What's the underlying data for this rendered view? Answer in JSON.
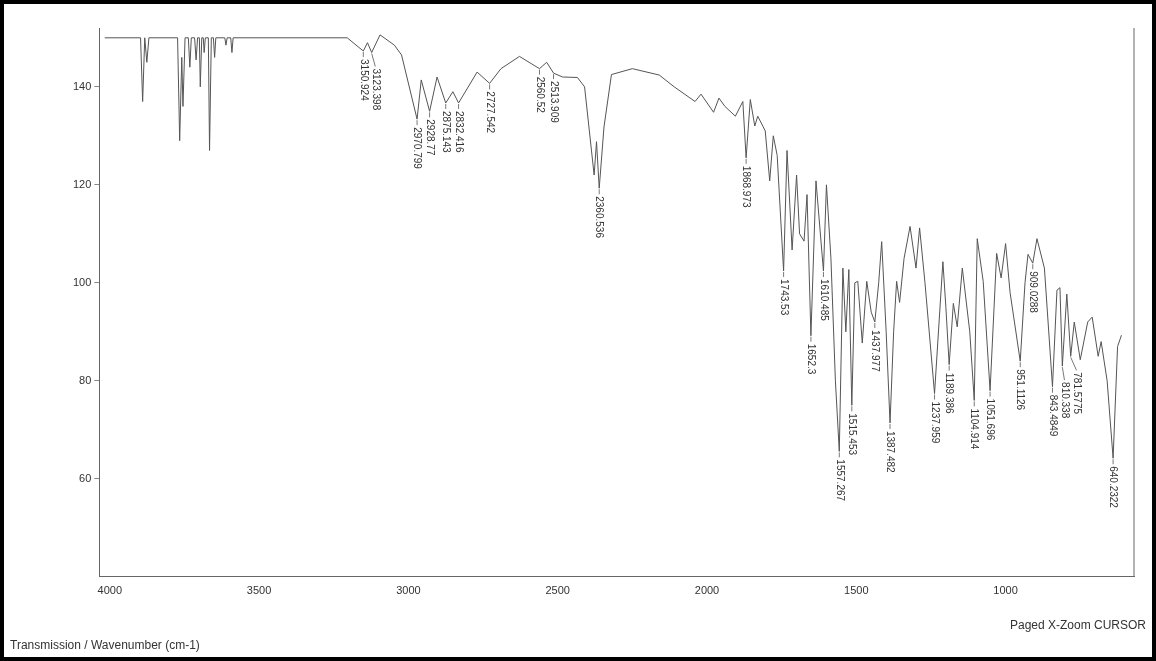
{
  "chart_data": {
    "type": "line",
    "xlabel": "Transmission / Wavenumber (cm-1)",
    "x": [
      4017,
      3897,
      3890,
      3883,
      3876,
      3869,
      3773,
      3766,
      3759,
      3755,
      3748,
      3737,
      3732,
      3727,
      3716,
      3711,
      3706,
      3700,
      3697,
      3692,
      3687,
      3684,
      3680,
      3670,
      3666,
      3660,
      3653,
      3649,
      3645,
      3615,
      3611,
      3607,
      3595,
      3591,
      3587,
      3205,
      3151,
      3137,
      3123,
      3095,
      3047,
      3023,
      2971,
      2957,
      2929,
      2904,
      2875,
      2851,
      2832,
      2770,
      2728,
      2690,
      2628,
      2561,
      2537,
      2514,
      2484,
      2434,
      2410,
      2378,
      2370,
      2361,
      2345,
      2320,
      2250,
      2160,
      2110,
      2040,
      2020,
      1978,
      1960,
      1940,
      1905,
      1880,
      1869,
      1855,
      1840,
      1830,
      1805,
      1790,
      1778,
      1765,
      1743.5,
      1732,
      1715,
      1700,
      1690,
      1675,
      1665,
      1652,
      1635,
      1610,
      1600,
      1585,
      1570,
      1557,
      1545,
      1535,
      1525,
      1515,
      1505,
      1495,
      1480,
      1465,
      1450,
      1438,
      1425,
      1415,
      1400,
      1387,
      1375,
      1365,
      1355,
      1340,
      1320,
      1300,
      1288,
      1270,
      1238,
      1210,
      1200,
      1189,
      1175,
      1162,
      1145,
      1120,
      1105,
      1095,
      1075,
      1052,
      1030,
      1015,
      1000,
      985,
      951,
      935,
      925,
      909,
      895,
      870,
      843,
      828,
      818,
      810,
      795,
      782,
      770,
      750,
      725,
      710,
      690,
      680,
      660,
      640,
      625,
      612
    ],
    "series": [
      {
        "color": "#555555",
        "values": [
          150,
          150,
          137,
          150,
          145,
          150,
          150,
          129,
          146,
          136,
          150,
          150,
          144,
          150,
          150,
          145.5,
          150,
          150,
          140,
          150,
          150,
          147,
          150,
          150,
          127,
          150,
          150,
          146,
          150,
          150,
          148.5,
          150,
          150,
          147,
          150,
          150,
          147.3,
          149,
          147,
          150.6,
          148.5,
          146.5,
          133.4,
          141.4,
          135,
          142,
          136.7,
          139,
          136.7,
          143,
          140.7,
          143.7,
          146.2,
          143.7,
          145,
          142.8,
          142,
          141.9,
          140,
          122,
          128.8,
          119.3,
          131.8,
          142.5,
          143.7,
          142.4,
          140,
          137,
          138.5,
          134.8,
          137.7,
          136,
          134,
          137,
          125.5,
          137.4,
          132,
          134,
          131,
          120.8,
          130,
          126,
          102.4,
          127,
          106.7,
          122,
          110,
          108.5,
          118,
          89.2,
          120.8,
          102.4,
          120,
          105,
          80,
          65.6,
          103,
          90,
          102.7,
          75,
          100,
          100.3,
          87.7,
          100.3,
          94,
          92,
          100,
          108.4,
          90,
          71.4,
          90,
          100.3,
          96,
          105,
          111.5,
          103,
          111.2,
          100,
          77.4,
          104.3,
          95,
          83.3,
          95.8,
          91,
          103,
          90,
          76,
          109,
          100.3,
          78,
          106,
          101,
          108,
          98,
          84,
          100,
          105.8,
          104,
          109,
          103,
          78.8,
          98.5,
          99,
          83,
          97.7,
          85,
          92,
          84.3,
          92,
          93,
          85,
          88,
          80,
          64.2,
          87,
          89.3
        ]
      }
    ],
    "xlim": [
      4035,
      570
    ],
    "ylim": [
      40,
      152
    ],
    "xticks": [
      4000,
      3500,
      3000,
      2500,
      2000,
      1500,
      1000
    ],
    "yticks": [
      60,
      80,
      100,
      120,
      140
    ],
    "grid": false,
    "legend": false,
    "marker": "none",
    "line_style": "solid",
    "annotations": [
      {
        "text": "3150.924",
        "x": 3151,
        "y": 147.3
      },
      {
        "text": "3123.398",
        "x": 3123,
        "y": 147
      },
      {
        "text": "2970.799",
        "x": 2971,
        "y": 133.4
      },
      {
        "text": "2928.77",
        "x": 2929,
        "y": 135
      },
      {
        "text": "2875.143",
        "x": 2875,
        "y": 136.7
      },
      {
        "text": "2832.416",
        "x": 2832,
        "y": 136.7
      },
      {
        "text": "2727.542",
        "x": 2728,
        "y": 140.7
      },
      {
        "text": "2560.52",
        "x": 2561,
        "y": 143.7
      },
      {
        "text": "2513.909",
        "x": 2514,
        "y": 142.8
      },
      {
        "text": "2360.536",
        "x": 2361,
        "y": 119.3
      },
      {
        "text": "1868.973",
        "x": 1869,
        "y": 125.5
      },
      {
        "text": "1743.53",
        "x": 1743.5,
        "y": 102.4
      },
      {
        "text": "1652.3",
        "x": 1652,
        "y": 89.2
      },
      {
        "text": "1610.485",
        "x": 1610,
        "y": 102.4
      },
      {
        "text": "1557.267",
        "x": 1557,
        "y": 65.6
      },
      {
        "text": "1515.453",
        "x": 1515,
        "y": 75
      },
      {
        "text": "1437.977",
        "x": 1438,
        "y": 92
      },
      {
        "text": "1387.482",
        "x": 1387,
        "y": 71.4
      },
      {
        "text": "1237.959",
        "x": 1238,
        "y": 77.4
      },
      {
        "text": "1189.386",
        "x": 1189,
        "y": 83.3
      },
      {
        "text": "1104.914",
        "x": 1105,
        "y": 76
      },
      {
        "text": "1051.696",
        "x": 1052,
        "y": 78
      },
      {
        "text": "951.1126",
        "x": 951,
        "y": 84
      },
      {
        "text": "909.0288",
        "x": 909,
        "y": 104
      },
      {
        "text": "843.4849",
        "x": 843,
        "y": 78.8
      },
      {
        "text": "810.338",
        "x": 810,
        "y": 83
      },
      {
        "text": "781.5775",
        "x": 782,
        "y": 85
      },
      {
        "text": "640.2322",
        "x": 640,
        "y": 64.2
      },
      "Paged   X-Zoom CURSOR"
    ]
  }
}
